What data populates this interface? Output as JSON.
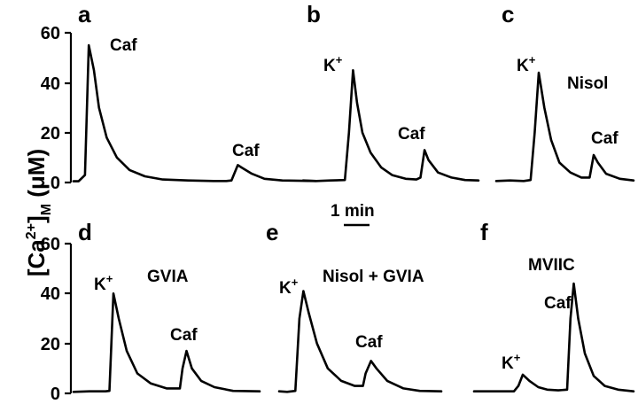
{
  "y_axis_label": {
    "main": "[Ca",
    "sup": "2+",
    "close": "]",
    "sub": "M",
    "unit": " (μM)"
  },
  "scale_bar": {
    "label": "1 min"
  },
  "chart_data": [
    {
      "type": "line",
      "panel": "a",
      "ylim": [
        0,
        60
      ],
      "yticks": [
        "0",
        "20",
        "40",
        "60"
      ],
      "annotations": [
        {
          "text": "Caf"
        },
        {
          "text": "Caf"
        }
      ],
      "series": [
        {
          "name": "a",
          "x": [
            0,
            0.2,
            0.45,
            0.6,
            0.8,
            1.0,
            1.3,
            1.7,
            2.2,
            2.8,
            3.5,
            4.5,
            5.5,
            6.0,
            6.2,
            6.45,
            6.6,
            7.0,
            7.5,
            8.2,
            9.5
          ],
          "y": [
            0.5,
            0.5,
            3,
            55,
            45,
            30,
            18,
            10,
            5,
            2.5,
            1.2,
            0.8,
            0.6,
            0.6,
            0.8,
            7,
            6,
            3.5,
            1.5,
            0.8,
            0.6
          ]
        }
      ]
    },
    {
      "type": "line",
      "panel": "b",
      "ylim": [
        0,
        60
      ],
      "yticks": [],
      "annotations": [
        {
          "text": "K",
          "sup": "+"
        },
        {
          "text": "Caf"
        }
      ],
      "series": [
        {
          "name": "b",
          "x": [
            0,
            0.5,
            1.0,
            1.55,
            1.7,
            1.85,
            2.0,
            2.2,
            2.5,
            2.9,
            3.3,
            3.8,
            4.2,
            4.35,
            4.5,
            4.65,
            5.0,
            5.5,
            6.0,
            6.5
          ],
          "y": [
            0.8,
            0.6,
            0.8,
            1,
            20,
            45,
            32,
            20,
            12,
            6,
            3,
            1.5,
            1.2,
            2,
            13,
            9,
            4,
            2,
            1,
            0.8
          ]
        }
      ]
    },
    {
      "type": "line",
      "panel": "c",
      "ylim": [
        0,
        60
      ],
      "yticks": [],
      "annotations": [
        {
          "text": "K",
          "sup": "+"
        },
        {
          "text": "Nisol"
        },
        {
          "text": "Caf"
        }
      ],
      "series": [
        {
          "name": "c",
          "x": [
            0,
            0.5,
            1.0,
            1.25,
            1.4,
            1.55,
            1.75,
            2.0,
            2.3,
            2.7,
            3.1,
            3.4,
            3.55,
            3.7,
            4.0,
            4.5,
            5.0
          ],
          "y": [
            0.6,
            0.8,
            0.6,
            1,
            20,
            44,
            30,
            17,
            8,
            4,
            2,
            2,
            11,
            8,
            3.5,
            1.5,
            0.8
          ]
        }
      ]
    },
    {
      "type": "line",
      "panel": "d",
      "ylim": [
        0,
        60
      ],
      "yticks": [
        "0",
        "20",
        "40",
        "60"
      ],
      "annotations": [
        {
          "text": "K",
          "sup": "+"
        },
        {
          "text": "GVIA"
        },
        {
          "text": "Caf"
        }
      ],
      "series": [
        {
          "name": "d",
          "x": [
            0,
            0.6,
            1.2,
            1.35,
            1.5,
            1.7,
            2.0,
            2.4,
            2.9,
            3.5,
            4.0,
            4.1,
            4.25,
            4.45,
            4.8,
            5.3,
            6.0,
            7.0
          ],
          "y": [
            0.6,
            0.8,
            0.8,
            1,
            40,
            30,
            17,
            8,
            4,
            2,
            2,
            10,
            17,
            10,
            5,
            2.5,
            1,
            0.8
          ]
        }
      ]
    },
    {
      "type": "line",
      "panel": "e",
      "ylim": [
        0,
        60
      ],
      "yticks": [],
      "annotations": [
        {
          "text": "K",
          "sup": "+"
        },
        {
          "text": "Nisol + GVIA"
        },
        {
          "text": "Caf"
        }
      ],
      "series": [
        {
          "name": "e",
          "x": [
            0,
            0.3,
            0.6,
            0.75,
            0.9,
            1.1,
            1.4,
            1.8,
            2.3,
            2.8,
            3.1,
            3.2,
            3.4,
            3.6,
            4.0,
            4.6,
            5.2,
            6.0
          ],
          "y": [
            0.8,
            0.6,
            1,
            30,
            41,
            32,
            20,
            10,
            5,
            3,
            3,
            8,
            13,
            10,
            5,
            2,
            1,
            0.8
          ]
        }
      ]
    },
    {
      "type": "line",
      "panel": "f",
      "ylim": [
        0,
        60
      ],
      "yticks": [],
      "annotations": [
        {
          "text": "MVIIC"
        },
        {
          "text": "Caf"
        },
        {
          "text": "K",
          "sup": "+"
        }
      ],
      "series": [
        {
          "name": "f",
          "x": [
            0,
            1.0,
            1.8,
            2.0,
            2.2,
            2.5,
            2.9,
            3.3,
            3.8,
            4.2,
            4.35,
            4.5,
            4.7,
            5.0,
            5.4,
            5.9,
            6.5,
            7.2
          ],
          "y": [
            0.8,
            0.8,
            0.8,
            3,
            7.5,
            5,
            2.5,
            1.5,
            1.2,
            1.5,
            30,
            44,
            30,
            16,
            7,
            3,
            1.5,
            0.8
          ]
        }
      ]
    }
  ]
}
